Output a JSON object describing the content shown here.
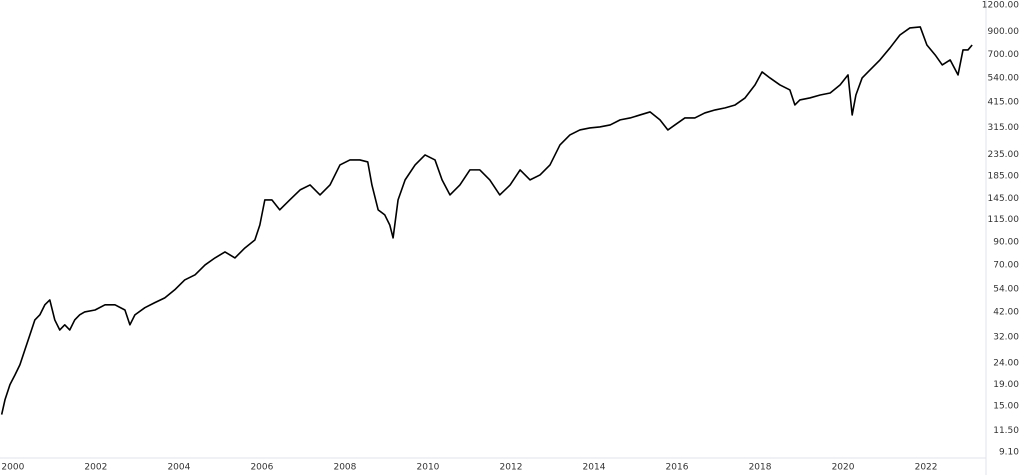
{
  "chart_data": {
    "type": "line",
    "log_scale": true,
    "grid": false,
    "xlim": [
      1999.69,
      2023.42
    ],
    "ylim": [
      8.16,
      1267
    ],
    "xticks": [
      2000,
      2002,
      2004,
      2006,
      2008,
      2010,
      2012,
      2014,
      2016,
      2018,
      2020,
      2022
    ],
    "yticks": [
      {
        "value": 1200,
        "label": "1200.00"
      },
      {
        "value": 900,
        "label": "900.00"
      },
      {
        "value": 700,
        "label": "700.00"
      },
      {
        "value": 540,
        "label": "540.00"
      },
      {
        "value": 415,
        "label": "415.00"
      },
      {
        "value": 315,
        "label": "315.00"
      },
      {
        "value": 235,
        "label": "235.00"
      },
      {
        "value": 185,
        "label": "185.00"
      },
      {
        "value": 145,
        "label": "145.00"
      },
      {
        "value": 115,
        "label": "115.00"
      },
      {
        "value": 90,
        "label": "90.00"
      },
      {
        "value": 70,
        "label": "70.00"
      },
      {
        "value": 54,
        "label": "54.00"
      },
      {
        "value": 42,
        "label": "42.00"
      },
      {
        "value": 32,
        "label": "32.00"
      },
      {
        "value": 24,
        "label": "24.00"
      },
      {
        "value": 19,
        "label": "19.00"
      },
      {
        "value": 15,
        "label": "15.00"
      },
      {
        "value": 11.5,
        "label": "11.50"
      },
      {
        "value": 9.1,
        "label": "9.10"
      }
    ],
    "x": [
      1999.73,
      1999.81,
      1999.93,
      2000.05,
      2000.17,
      2000.29,
      2000.41,
      2000.53,
      2000.65,
      2000.77,
      2000.89,
      2001.01,
      2001.13,
      2001.25,
      2001.37,
      2001.49,
      2001.61,
      2001.73,
      2001.98,
      2002.22,
      2002.46,
      2002.7,
      2002.82,
      2002.94,
      2003.18,
      2003.42,
      2003.66,
      2003.9,
      2004.14,
      2004.39,
      2004.63,
      2004.87,
      2005.11,
      2005.35,
      2005.59,
      2005.83,
      2005.95,
      2006.07,
      2006.24,
      2006.43,
      2006.67,
      2006.92,
      2007.16,
      2007.4,
      2007.64,
      2007.88,
      2008.12,
      2008.36,
      2008.55,
      2008.65,
      2008.8,
      2008.96,
      2009.08,
      2009.16,
      2009.28,
      2009.45,
      2009.69,
      2009.93,
      2010.17,
      2010.34,
      2010.53,
      2010.77,
      2011.01,
      2011.25,
      2011.49,
      2011.73,
      2011.98,
      2012.22,
      2012.46,
      2012.7,
      2012.94,
      2013.18,
      2013.42,
      2013.66,
      2013.9,
      2014.14,
      2014.39,
      2014.63,
      2014.87,
      2015.11,
      2015.35,
      2015.59,
      2015.78,
      2015.95,
      2016.19,
      2016.43,
      2016.67,
      2016.92,
      2017.16,
      2017.4,
      2017.64,
      2017.88,
      2018.05,
      2018.24,
      2018.48,
      2018.72,
      2018.84,
      2018.96,
      2019.2,
      2019.45,
      2019.69,
      2019.93,
      2020.12,
      2020.22,
      2020.31,
      2020.46,
      2020.65,
      2020.89,
      2021.13,
      2021.37,
      2021.61,
      2021.86,
      2022.02,
      2022.22,
      2022.39,
      2022.58,
      2022.77,
      2022.89,
      2023.01,
      2023.11
    ],
    "series": [
      {
        "color": "#000000",
        "values": [
          13.7,
          16.1,
          19.0,
          21.1,
          23.6,
          27.8,
          32.7,
          38.5,
          40.7,
          45.4,
          47.9,
          38.5,
          34.5,
          36.5,
          34.5,
          38.5,
          40.7,
          42.0,
          42.9,
          45.4,
          45.4,
          42.9,
          36.5,
          40.7,
          44.0,
          46.5,
          49.0,
          53.5,
          59.6,
          63.0,
          70.2,
          75.8,
          80.9,
          75.8,
          84.5,
          92.2,
          108.6,
          142.8,
          142.8,
          128.1,
          142.8,
          159.3,
          168.1,
          150.8,
          168.1,
          209.2,
          220.9,
          220.9,
          216.1,
          168.1,
          128.1,
          121.2,
          108.6,
          94.3,
          142.8,
          177.7,
          209.2,
          233.3,
          220.9,
          177.7,
          150.8,
          168.1,
          198.2,
          198.2,
          177.7,
          150.8,
          168.1,
          198.2,
          177.7,
          187.6,
          209.2,
          260.3,
          290.3,
          306.5,
          313.3,
          316.8,
          323.8,
          342.1,
          349.4,
          361.1,
          373.2,
          342.1,
          306.5,
          323.8,
          349.4,
          349.4,
          369.1,
          381.5,
          390.0,
          402.7,
          434.9,
          501.2,
          577.7,
          540.8,
          501.2,
          474.4,
          402.7,
          425.4,
          434.9,
          449.0,
          459.0,
          501.2,
          559.0,
          361.1,
          449.0,
          540.8,
          590.0,
          658.6,
          750.7,
          864.5,
          933.6,
          943.9,
          775.2,
          695.2,
          623.3,
          658.6,
          559.0,
          734.4,
          734.4,
          775.2
        ]
      }
    ]
  }
}
